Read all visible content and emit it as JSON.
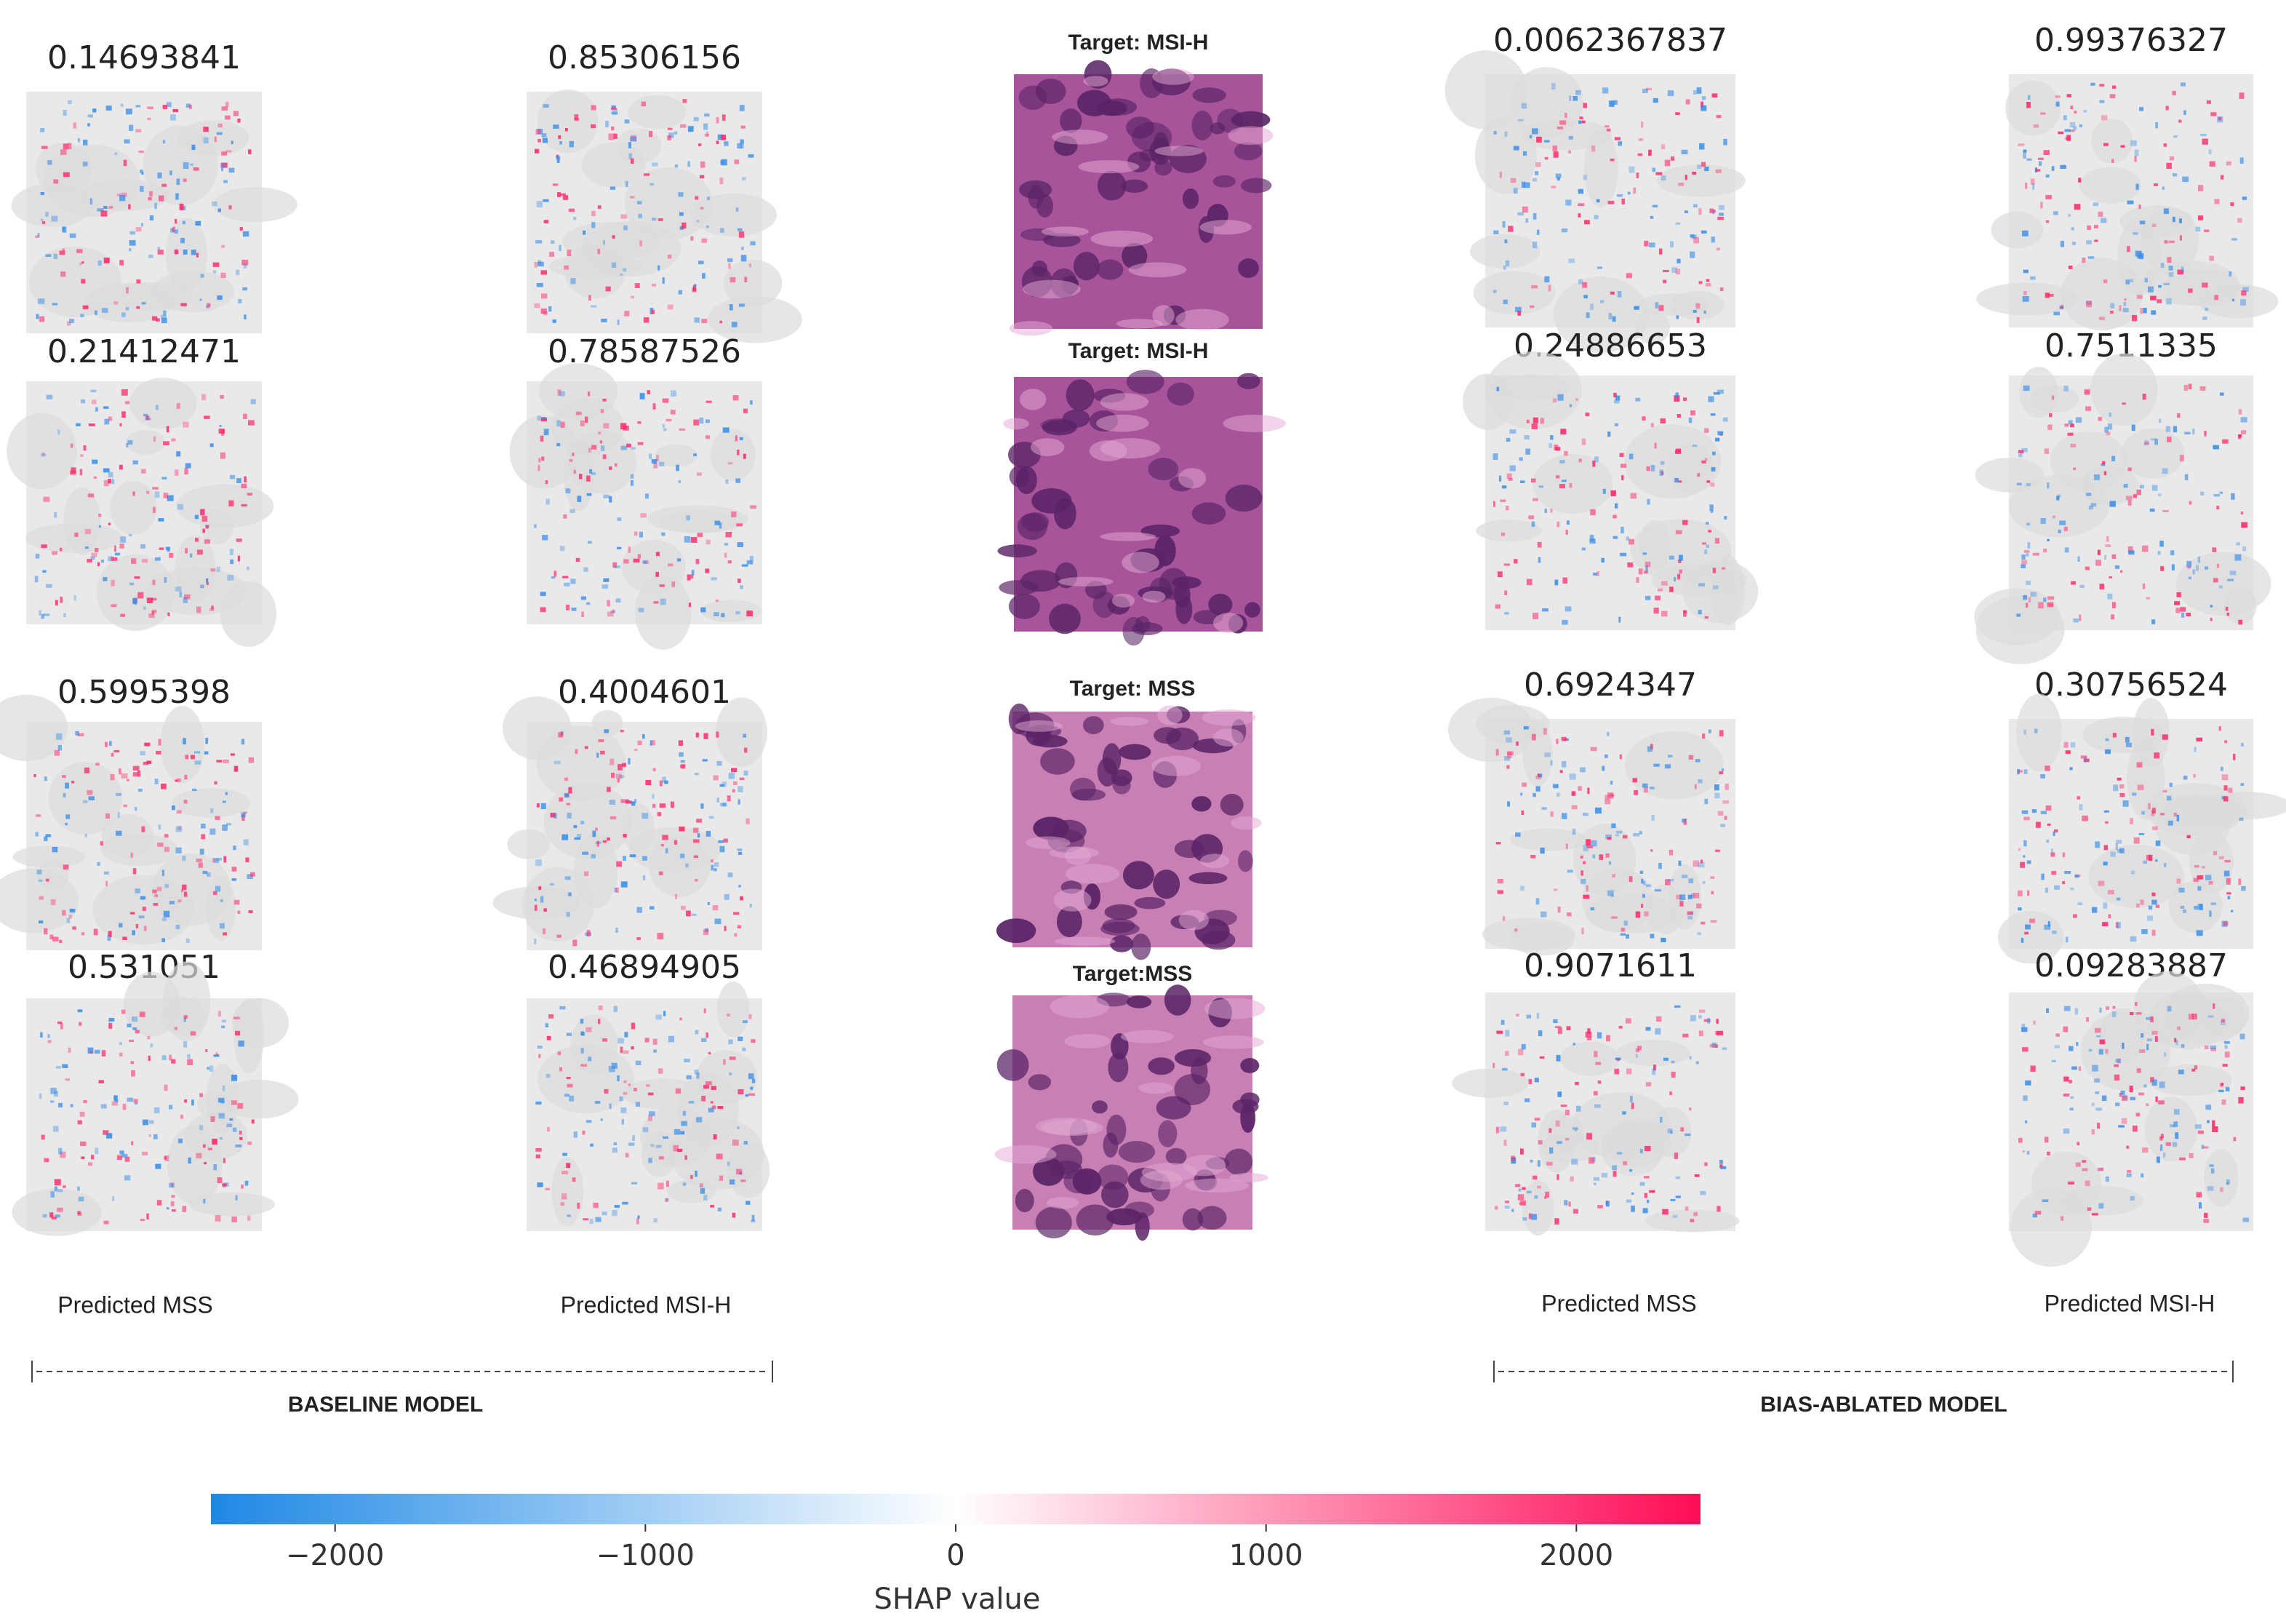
{
  "rows": [
    {
      "baseline": {
        "mss": 0.14693841,
        "msi_h": 0.85306156
      },
      "target": "Target: MSI-H",
      "ablated": {
        "mss": 0.0062367837,
        "msi_h": 0.99376327
      }
    },
    {
      "baseline": {
        "mss": 0.21412471,
        "msi_h": 0.78587526
      },
      "target": "Target: MSI-H",
      "ablated": {
        "mss": 0.24886653,
        "msi_h": 0.7511335
      }
    },
    {
      "baseline": {
        "mss": 0.5995398,
        "msi_h": 0.4004601
      },
      "target": "Target: MSS",
      "ablated": {
        "mss": 0.6924347,
        "msi_h": 0.30756524
      }
    },
    {
      "baseline": {
        "mss": 0.531051,
        "msi_h": 0.46894905
      },
      "target": "Target:MSS",
      "ablated": {
        "mss": 0.9071611,
        "msi_h": 0.09283887
      }
    }
  ],
  "column_labels": [
    "Predicted MSS",
    "Predicted MSI-H",
    "Predicted MSS",
    "Predicted MSI-H"
  ],
  "model_labels": [
    "BASELINE MODEL",
    "BIAS-ABLATED MODEL"
  ],
  "colorbar": {
    "label": "SHAP value",
    "lim": [
      -2400,
      2400
    ],
    "ticks": [
      {
        "value": -2000,
        "label": "−2000"
      },
      {
        "value": -1000,
        "label": "−1000"
      },
      0,
      1000,
      2000
    ]
  }
}
